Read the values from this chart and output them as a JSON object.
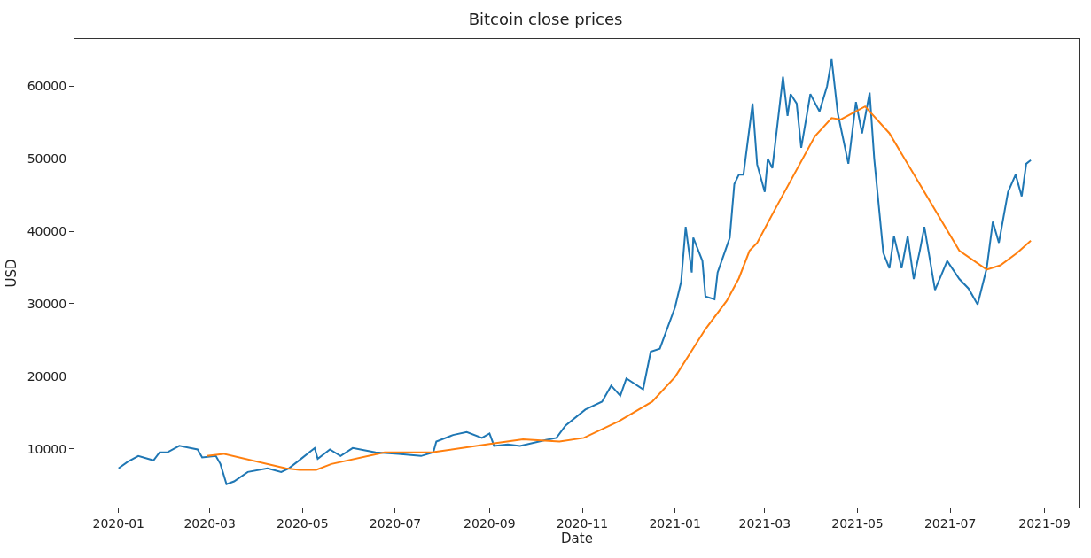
{
  "chart_data": {
    "type": "line",
    "title": "Bitcoin close prices",
    "xlabel": "Date",
    "ylabel": "USD",
    "xlim": [
      "2019-12-03",
      "2021-09-24"
    ],
    "ylim": [
      1900,
      66500
    ],
    "xticks": [
      "2020-01",
      "2020-03",
      "2020-05",
      "2020-07",
      "2020-09",
      "2020-11",
      "2021-01",
      "2021-03",
      "2021-05",
      "2021-07",
      "2021-09"
    ],
    "yticks": [
      10000,
      20000,
      30000,
      40000,
      50000,
      60000
    ],
    "marker": "none",
    "line_style": "solid",
    "series": [
      {
        "color": "#1f77b4",
        "x": [
          "2020-01-01",
          "2020-01-07",
          "2020-01-14",
          "2020-01-24",
          "2020-01-28",
          "2020-02-02",
          "2020-02-10",
          "2020-02-17",
          "2020-02-22",
          "2020-02-25",
          "2020-03-05",
          "2020-03-08",
          "2020-03-12",
          "2020-03-17",
          "2020-03-26",
          "2020-04-08",
          "2020-04-17",
          "2020-04-22",
          "2020-04-30",
          "2020-05-09",
          "2020-05-11",
          "2020-05-19",
          "2020-05-26",
          "2020-06-03",
          "2020-06-18",
          "2020-07-03",
          "2020-07-18",
          "2020-07-26",
          "2020-07-28",
          "2020-08-08",
          "2020-08-17",
          "2020-08-27",
          "2020-09-01",
          "2020-09-04",
          "2020-09-13",
          "2020-09-21",
          "2020-10-08",
          "2020-10-15",
          "2020-10-21",
          "2020-11-03",
          "2020-11-14",
          "2020-11-20",
          "2020-11-26",
          "2020-11-30",
          "2020-12-11",
          "2020-12-16",
          "2020-12-22",
          "2021-01-01",
          "2021-01-05",
          "2021-01-08",
          "2021-01-12",
          "2021-01-13",
          "2021-01-19",
          "2021-01-21",
          "2021-01-27",
          "2021-01-29",
          "2021-02-03",
          "2021-02-06",
          "2021-02-09",
          "2021-02-12",
          "2021-02-15",
          "2021-02-21",
          "2021-02-24",
          "2021-03-01",
          "2021-03-03",
          "2021-03-06",
          "2021-03-13",
          "2021-03-16",
          "2021-03-18",
          "2021-03-22",
          "2021-03-25",
          "2021-03-31",
          "2021-04-06",
          "2021-04-11",
          "2021-04-14",
          "2021-04-18",
          "2021-04-25",
          "2021-04-30",
          "2021-05-04",
          "2021-05-09",
          "2021-05-12",
          "2021-05-18",
          "2021-05-22",
          "2021-05-25",
          "2021-05-30",
          "2021-06-03",
          "2021-06-07",
          "2021-06-11",
          "2021-06-14",
          "2021-06-21",
          "2021-06-29",
          "2021-07-07",
          "2021-07-13",
          "2021-07-19",
          "2021-07-25",
          "2021-07-29",
          "2021-08-02",
          "2021-08-08",
          "2021-08-13",
          "2021-08-17",
          "2021-08-20",
          "2021-08-23"
        ],
        "values": [
          7300,
          8200,
          9000,
          8400,
          9500,
          9500,
          10400,
          10100,
          9900,
          8800,
          9000,
          7900,
          5100,
          5500,
          6800,
          7300,
          6800,
          7300,
          8600,
          10100,
          8600,
          9900,
          9000,
          10100,
          9500,
          9300,
          9000,
          9500,
          11000,
          11900,
          12300,
          11500,
          12100,
          10400,
          10600,
          10400,
          11200,
          11500,
          13200,
          15400,
          16500,
          18700,
          17300,
          19700,
          18200,
          23400,
          23800,
          29500,
          33000,
          40600,
          34300,
          39100,
          35900,
          31000,
          30600,
          34300,
          37300,
          39100,
          46500,
          47800,
          47800,
          57600,
          49200,
          45400,
          50000,
          48700,
          61300,
          55900,
          58900,
          57600,
          51500,
          58900,
          56500,
          60000,
          63700,
          56300,
          49300,
          57800,
          53500,
          59100,
          50000,
          37000,
          34900,
          39300,
          34900,
          39300,
          33400,
          37300,
          40600,
          31900,
          35900,
          33400,
          32100,
          29900,
          34900,
          41300,
          38400,
          45400,
          47800,
          44800,
          49300,
          49800
        ]
      },
      {
        "color": "#ff7f0e",
        "x": [
          "2020-02-28",
          "2020-03-10",
          "2020-04-20",
          "2020-04-29",
          "2020-05-10",
          "2020-05-20",
          "2020-06-24",
          "2020-07-08",
          "2020-07-25",
          "2020-09-02",
          "2020-09-23",
          "2020-10-17",
          "2020-11-02",
          "2020-11-25",
          "2020-12-17",
          "2021-01-01",
          "2021-01-21",
          "2021-02-04",
          "2021-02-12",
          "2021-02-19",
          "2021-02-24",
          "2021-03-08",
          "2021-04-03",
          "2021-04-14",
          "2021-04-20",
          "2021-05-06",
          "2021-05-22",
          "2021-06-12",
          "2021-07-07",
          "2021-07-25",
          "2021-08-03",
          "2021-08-14",
          "2021-08-23"
        ],
        "values": [
          9000,
          9300,
          7300,
          7100,
          7100,
          7900,
          9500,
          9500,
          9500,
          10700,
          11300,
          11000,
          11500,
          13800,
          16500,
          19900,
          26500,
          30400,
          33500,
          37300,
          38400,
          43100,
          53100,
          55600,
          55400,
          57200,
          53500,
          46100,
          37300,
          34700,
          35300,
          37000,
          38700
        ]
      }
    ]
  }
}
